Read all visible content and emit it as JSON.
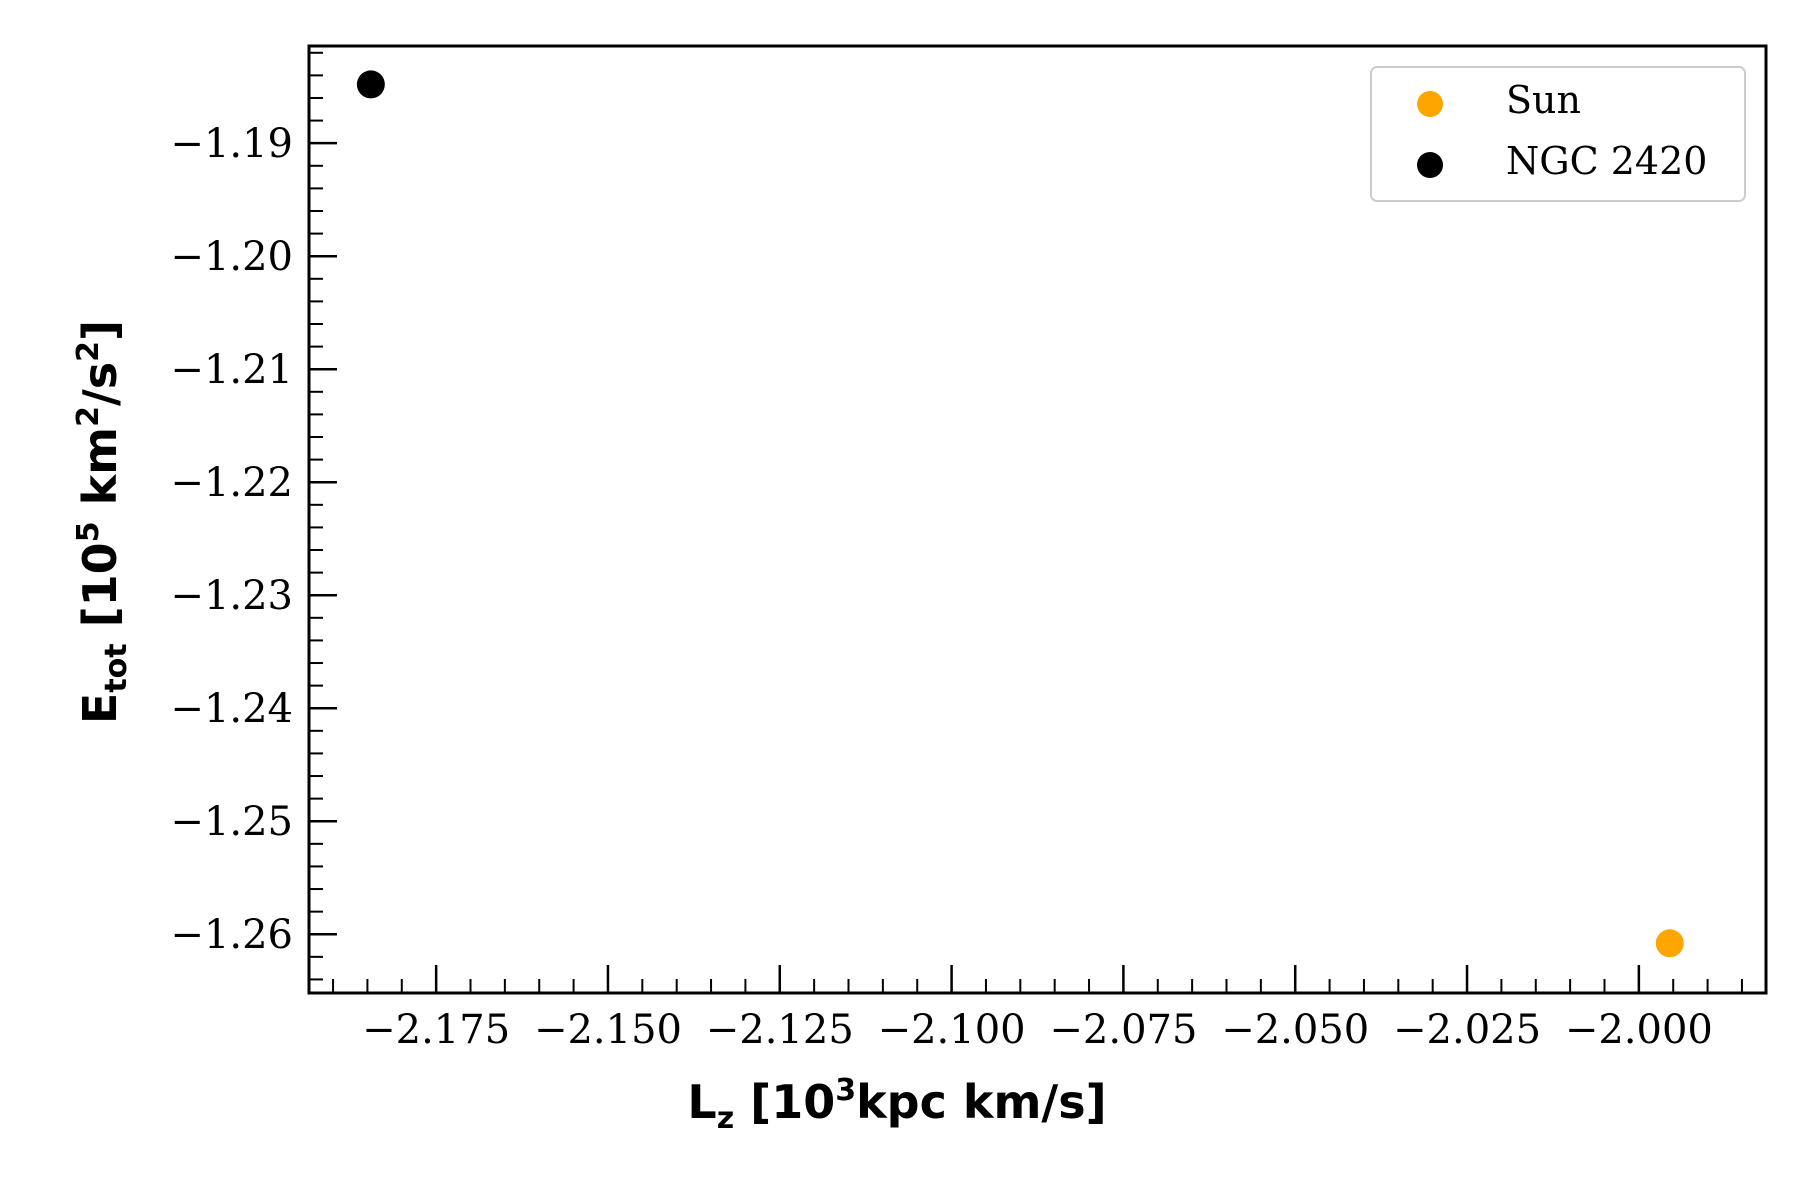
{
  "chart_data": {
    "type": "scatter",
    "series": [
      {
        "name": "Sun",
        "color": "#FFA500",
        "x": [
          -1.9955
        ],
        "y": [
          -1.2608
        ]
      },
      {
        "name": "NGC 2420",
        "color": "#000000",
        "x": [
          -2.1845
        ],
        "y": [
          -1.1848
        ]
      }
    ],
    "xlabel": {
      "main": "L",
      "sub": "z",
      "pre": " [10",
      "sup": "3",
      "post": "kpc km/s]"
    },
    "ylabel": {
      "main": "E",
      "sub": "tot",
      "pre": " [10",
      "sup1": "5",
      "mid": " km",
      "sup2": "2",
      "mid2": "/s",
      "sup3": "2",
      "post": "]"
    },
    "xlim": [
      -2.1935,
      -1.9815
    ],
    "ylim": [
      -1.2652,
      -1.1814
    ],
    "xticks": [
      -2.175,
      -2.15,
      -2.125,
      -2.1,
      -2.075,
      -2.05,
      -2.025,
      -2.0
    ],
    "xtick_labels": [
      "−2.175",
      "−2.150",
      "−2.125",
      "−2.100",
      "−2.075",
      "−2.050",
      "−2.025",
      "−2.000"
    ],
    "yticks": [
      -1.19,
      -1.2,
      -1.21,
      -1.22,
      -1.23,
      -1.24,
      -1.25,
      -1.26
    ],
    "ytick_labels": [
      "−1.19",
      "−1.20",
      "−1.21",
      "−1.22",
      "−1.23",
      "−1.24",
      "−1.25",
      "−1.26"
    ],
    "grid": false,
    "legend_position": "top-right"
  }
}
